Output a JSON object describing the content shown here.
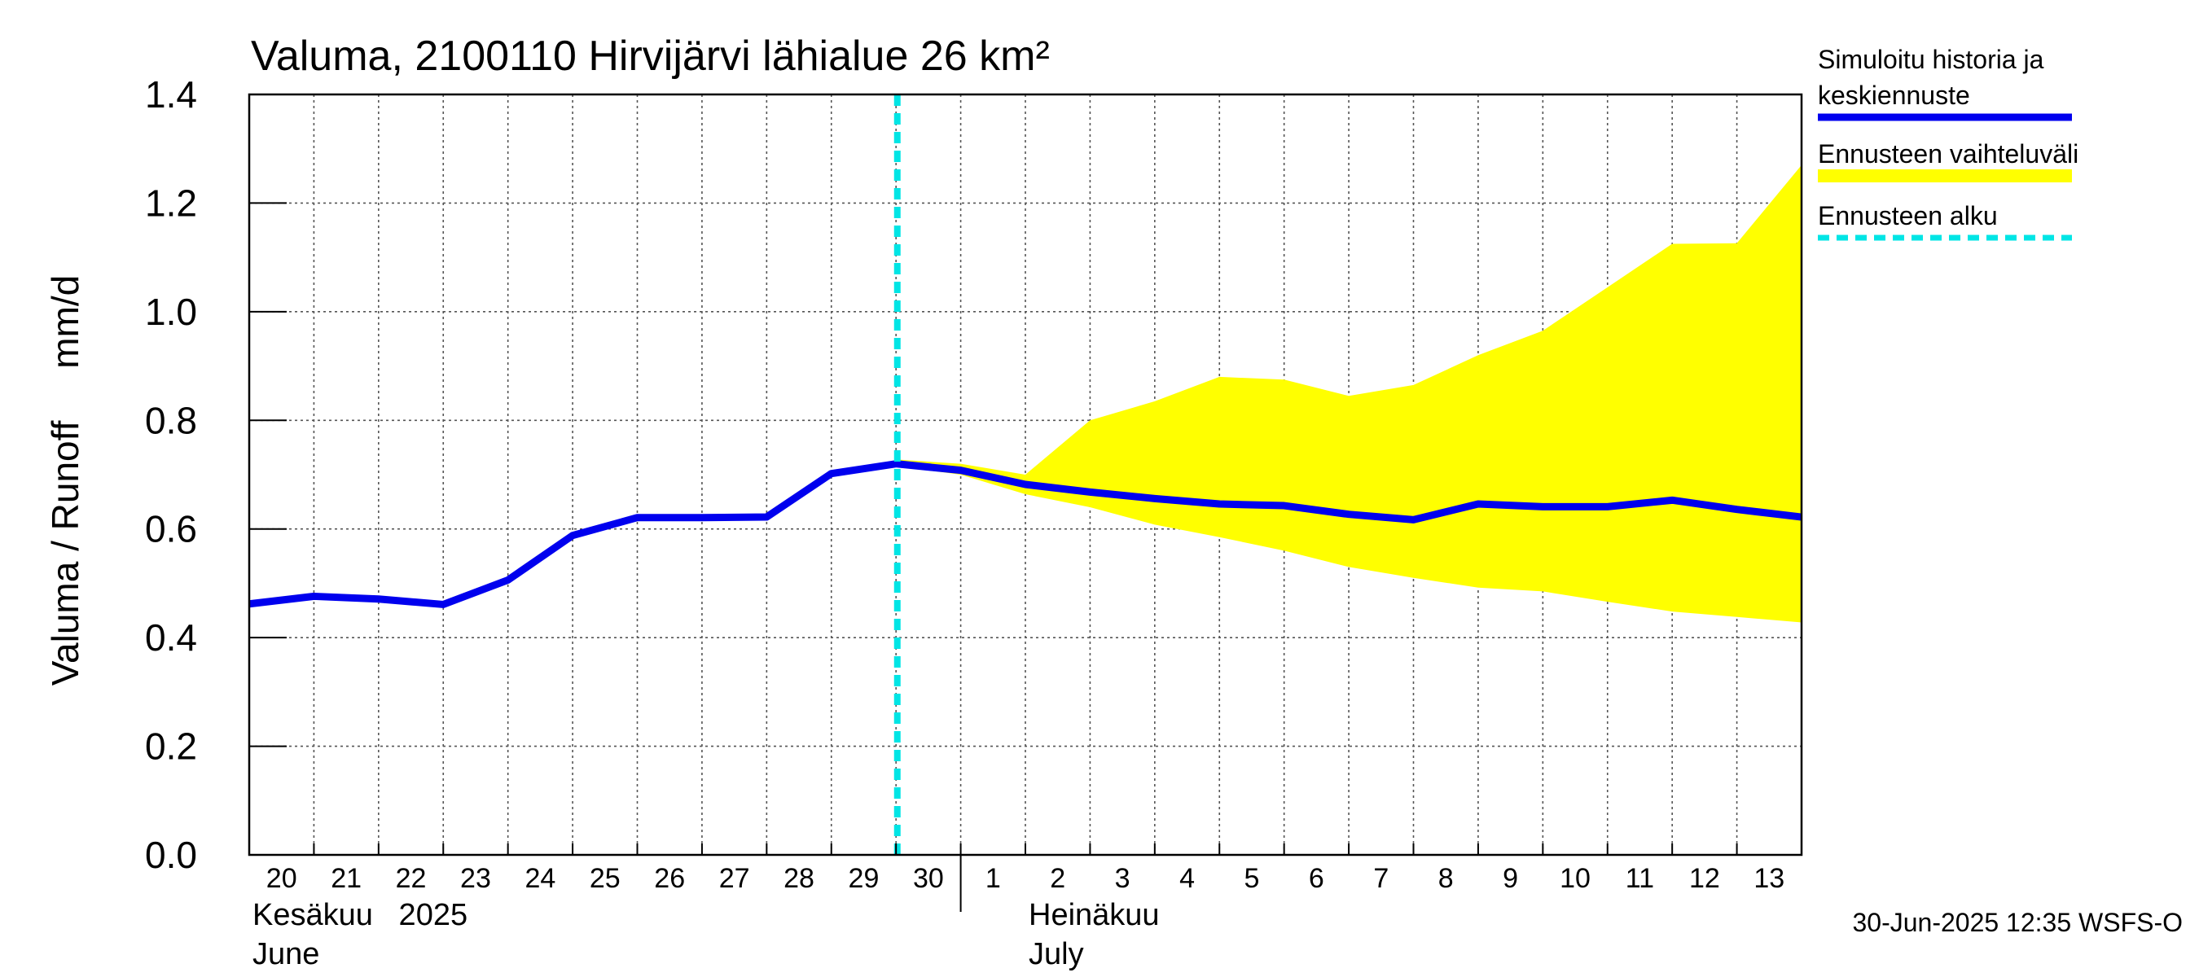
{
  "chart_data": {
    "type": "line",
    "title": "Valuma, 2100110 Hirvijärvi lähialue 26 km²",
    "ylabel": "Valuma / Runoff     mm/d",
    "ylim": [
      0,
      1.4
    ],
    "yticks": [
      0.0,
      0.2,
      0.4,
      0.6,
      0.8,
      1.0,
      1.2,
      1.4
    ],
    "ytick_labels": [
      "0.0",
      "0.2",
      "0.4",
      "0.6",
      "0.8",
      "1.0",
      "1.2",
      "1.4"
    ],
    "x_day_labels": [
      "20",
      "21",
      "22",
      "23",
      "24",
      "25",
      "26",
      "27",
      "28",
      "29",
      "30",
      "1",
      "2",
      "3",
      "4",
      "5",
      "6",
      "7",
      "8",
      "9",
      "10",
      "11",
      "12",
      "13"
    ],
    "month_labels": [
      {
        "line1": "Kesäkuu   2025",
        "line2": "June",
        "day_index": 0
      },
      {
        "line1": "Heinäkuu",
        "line2": "July",
        "day_index": 12
      }
    ],
    "month_separator_day_index": 11,
    "forecast_start_day_index": 10,
    "grid": true,
    "series": [
      {
        "name": "Simuloitu historia ja keskiennuste",
        "color": "#0000ee",
        "x": [
          0,
          1,
          2,
          3,
          4,
          5,
          6,
          7,
          8,
          9,
          10,
          11,
          12,
          13,
          14,
          15,
          16,
          17,
          18,
          19,
          20,
          21,
          22,
          23,
          24
        ],
        "values": [
          0.462,
          0.476,
          0.471,
          0.461,
          0.506,
          0.588,
          0.621,
          0.621,
          0.622,
          0.702,
          0.72,
          0.708,
          0.682,
          0.668,
          0.656,
          0.646,
          0.643,
          0.627,
          0.617,
          0.646,
          0.641,
          0.641,
          0.653,
          0.636,
          0.622
        ]
      }
    ],
    "band": {
      "name": "Ennusteen vaihteluväli",
      "color": "#ffff00",
      "x": [
        10,
        11,
        12,
        13,
        14,
        15,
        16,
        17,
        18,
        19,
        20,
        21,
        22,
        23,
        24
      ],
      "upper": [
        0.728,
        0.72,
        0.7,
        0.8,
        0.835,
        0.88,
        0.875,
        0.845,
        0.865,
        0.92,
        0.965,
        1.045,
        1.125,
        1.126,
        1.27
      ],
      "lower": [
        0.716,
        0.7,
        0.664,
        0.64,
        0.608,
        0.585,
        0.56,
        0.53,
        0.51,
        0.492,
        0.485,
        0.466,
        0.448,
        0.438,
        0.428
      ]
    },
    "legend": {
      "position": "right",
      "items": [
        {
          "label_lines": [
            "Simuloitu historia ja",
            "keskiennuste"
          ],
          "color": "#0000ee",
          "style": "solid"
        },
        {
          "label_lines": [
            "Ennusteen vaihteluväli"
          ],
          "color": "#ffff00",
          "style": "solid"
        },
        {
          "label_lines": [
            "Ennusteen alku"
          ],
          "color": "#00e5e5",
          "style": "dashed"
        }
      ]
    },
    "footer": "30-Jun-2025 12:35 WSFS-O"
  }
}
